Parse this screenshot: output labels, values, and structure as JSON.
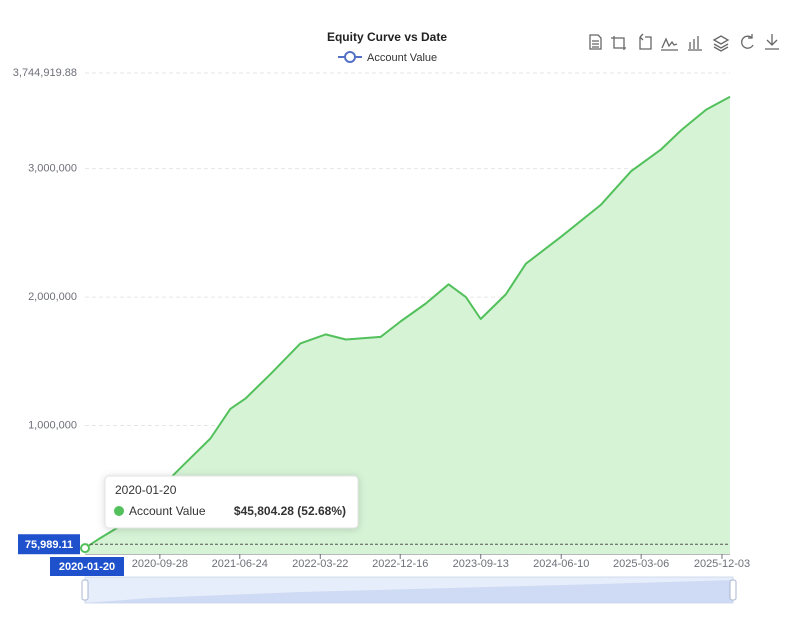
{
  "chart_data": {
    "type": "area",
    "title": "Equity Curve vs Date",
    "x": [
      "2020-01-20",
      "2020-03-11",
      "2020-05-17",
      "2020-08-26",
      "2020-12-05",
      "2021-03-17",
      "2021-05-23",
      "2021-07-13",
      "2021-10-05",
      "2022-01-14",
      "2022-04-09",
      "2022-06-16",
      "2022-10-11",
      "2022-12-17",
      "2023-03-12",
      "2023-05-28",
      "2023-07-25",
      "2023-09-13",
      "2023-12-06",
      "2024-02-12",
      "2024-06-09",
      "2024-10-22",
      "2025-01-31",
      "2025-05-12",
      "2025-07-19",
      "2025-10-11",
      "2025-12-30"
    ],
    "series": [
      {
        "name": "Account Value",
        "color": "#52c05b",
        "fill": "#d6f3d6",
        "values": [
          45804.28,
          124000,
          217000,
          434000,
          667000,
          899000,
          1130000,
          1210000,
          1400000,
          1640000,
          1710000,
          1670000,
          1690000,
          1810000,
          1950000,
          2100000,
          2000000,
          1830000,
          2020000,
          2260000,
          2470000,
          2720000,
          2980000,
          3150000,
          3300000,
          3460000,
          3560000
        ]
      }
    ],
    "xlim": [
      "2020-01-20",
      "2025-12-30"
    ],
    "xticks": [
      "2020-09-28",
      "2021-06-24",
      "2022-03-22",
      "2022-12-16",
      "2023-09-13",
      "2024-06-10",
      "2025-03-06",
      "2025-12-03"
    ],
    "ylim": [
      0,
      3744919.88
    ],
    "yticks": [
      {
        "value": 1000000,
        "label": "1,000,000"
      },
      {
        "value": 2000000,
        "label": "2,000,000"
      },
      {
        "value": 3000000,
        "label": "3,000,000"
      },
      {
        "value": 3744919.88,
        "label": "3,744,919.88"
      }
    ],
    "grid": true,
    "legend": "top",
    "axis_pointer": {
      "y": {
        "value": 75989.11,
        "label": "75,989.11"
      },
      "x": "2020-01-20"
    },
    "tooltip": {
      "title": "2020-01-20",
      "name": "Account Value",
      "value_label": "$45,804.28 (52.68%)"
    }
  }
}
